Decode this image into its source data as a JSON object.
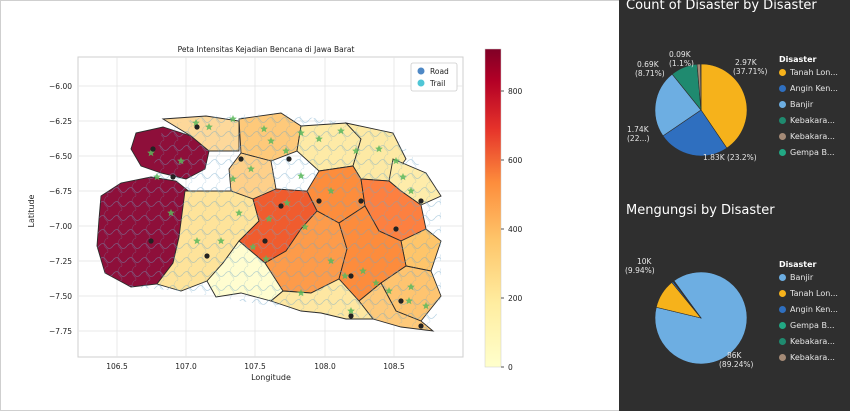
{
  "map_chart": {
    "title": "Peta Intensitas Kejadian Bencana di Jawa Barat",
    "xlabel": "Longitude",
    "ylabel": "Latitude",
    "x_ticks": [
      "106.5",
      "107.0",
      "107.5",
      "108.0",
      "108.5"
    ],
    "y_ticks": [
      "−6.00",
      "−6.25",
      "−6.50",
      "−6.75",
      "−7.00",
      "−7.25",
      "−7.50",
      "−7.75"
    ],
    "legend": [
      {
        "label": "Road",
        "color": "#4e88c5"
      },
      {
        "label": "Trail",
        "color": "#4fc6d6"
      }
    ],
    "colorbar_ticks": [
      "800",
      "600",
      "400",
      "200",
      "0"
    ],
    "colorbar_range": [
      0,
      910
    ]
  },
  "chart_data": [
    {
      "type": "pie",
      "title": "Count of Disaster by Disaster",
      "legend_title": "Disaster",
      "slices": [
        {
          "label": "Tanah Lon...",
          "value": 2970,
          "display": "2.97K",
          "pct": "(37.71%)",
          "color": "#f6b21b"
        },
        {
          "label": "Angin Ken...",
          "value": 1830,
          "display": "1.83K (23.2%)",
          "pct": "",
          "color": "#2f6fbf"
        },
        {
          "label": "Banjir",
          "value": 1740,
          "display": "1.74K",
          "pct": "(22...)",
          "color": "#6daee2"
        },
        {
          "label": "Kebakara...",
          "value": 690,
          "display": "0.69K",
          "pct": "(8.71%)",
          "color": "#1f8a6f"
        },
        {
          "label": "Kebakara...",
          "value": 90,
          "display": "0.09K",
          "pct": "(1.1%)",
          "color": "#a48a76"
        },
        {
          "label": "Gempa B...",
          "value": 10,
          "display": "",
          "pct": "",
          "color": "#22a884"
        }
      ]
    },
    {
      "type": "pie",
      "title": "Mengungsi by Disaster",
      "legend_title": "Disaster",
      "slices": [
        {
          "label": "Banjir",
          "value": 86000,
          "display": "86K",
          "pct": "(89.24%)",
          "color": "#6daee2"
        },
        {
          "label": "Tanah Lon...",
          "value": 10000,
          "display": "10K",
          "pct": "(9.94%)",
          "color": "#f6b21b"
        },
        {
          "label": "Angin Ken...",
          "value": 500,
          "display": "",
          "pct": "",
          "color": "#2f6fbf"
        },
        {
          "label": "Gempa B...",
          "value": 200,
          "display": "",
          "pct": "",
          "color": "#22a884"
        },
        {
          "label": "Kebakara...",
          "value": 100,
          "display": "",
          "pct": "",
          "color": "#1f8a6f"
        },
        {
          "label": "Kebakara...",
          "value": 100,
          "display": "",
          "pct": "",
          "color": "#a48a76"
        }
      ]
    }
  ]
}
